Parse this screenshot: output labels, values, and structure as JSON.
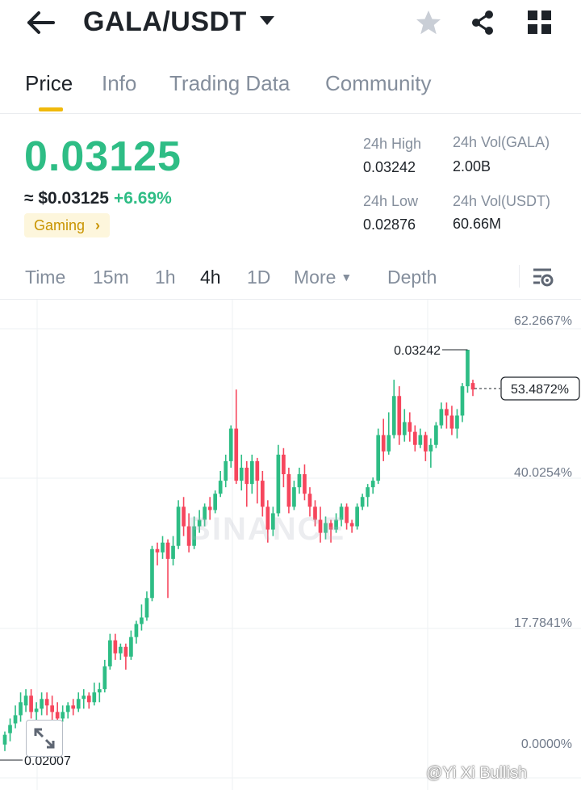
{
  "header": {
    "pair": "GALA/USDT"
  },
  "tabs": [
    {
      "label": "Price"
    },
    {
      "label": "Info"
    },
    {
      "label": "Trading Data"
    },
    {
      "label": "Community"
    }
  ],
  "ticker": {
    "last_price": "0.03125",
    "approx_usd": "≈ $0.03125",
    "change_pct": "+6.69%",
    "tag": "Gaming"
  },
  "stats": {
    "high_label": "24h High",
    "high_value": "0.03242",
    "vol_gala_label": "24h Vol(GALA)",
    "vol_gala_value": "2.00B",
    "low_label": "24h Low",
    "low_value": "0.02876",
    "vol_usdt_label": "24h Vol(USDT)",
    "vol_usdt_value": "60.66M"
  },
  "chart_tabs": [
    {
      "label": "Time"
    },
    {
      "label": "15m"
    },
    {
      "label": "1h"
    },
    {
      "label": "4h"
    },
    {
      "label": "1D"
    },
    {
      "label": "More"
    },
    {
      "label": "Depth"
    }
  ],
  "colors": {
    "up": "#2ebd85",
    "down": "#f6465d",
    "accent": "#f0b90b"
  },
  "chart_data": {
    "type": "candlestick",
    "interval": "4h",
    "y_axis_labels": [
      "62.2667%",
      "40.0254%",
      "17.7841%",
      "0.0000%"
    ],
    "current_marker": "53.4872%",
    "high_marker": "0.03242",
    "low_marker": "0.02007",
    "watermark": "BINANCE",
    "candles": [
      [
        0.0203,
        0.0206,
        0.0201,
        0.0207
      ],
      [
        0.02065,
        0.0209,
        0.0204,
        0.0211
      ],
      [
        0.02095,
        0.0212,
        0.0208,
        0.0215
      ],
      [
        0.0212,
        0.0216,
        0.021,
        0.0219
      ],
      [
        0.0215,
        0.0218,
        0.0213,
        0.022
      ],
      [
        0.0218,
        0.0213,
        0.0211,
        0.022
      ],
      [
        0.0213,
        0.0214,
        0.0209,
        0.0216
      ],
      [
        0.0214,
        0.0217,
        0.0212,
        0.0219
      ],
      [
        0.0217,
        0.0215,
        0.0212,
        0.0219
      ],
      [
        0.0215,
        0.0213,
        0.0209,
        0.0218
      ],
      [
        0.0213,
        0.0211,
        0.0208,
        0.0216
      ],
      [
        0.0211,
        0.0213,
        0.021,
        0.0215
      ],
      [
        0.0213,
        0.0215,
        0.0211,
        0.0216
      ],
      [
        0.0215,
        0.0214,
        0.0212,
        0.0217
      ],
      [
        0.0214,
        0.0217,
        0.0213,
        0.0219
      ],
      [
        0.0217,
        0.0218,
        0.0214,
        0.022
      ],
      [
        0.0218,
        0.0216,
        0.0214,
        0.0219
      ],
      [
        0.0216,
        0.0219,
        0.0215,
        0.0222
      ],
      [
        0.0219,
        0.022,
        0.0216,
        0.0222
      ],
      [
        0.022,
        0.0227,
        0.0219,
        0.0229
      ],
      [
        0.0227,
        0.0235,
        0.0226,
        0.0237
      ],
      [
        0.0235,
        0.0231,
        0.0229,
        0.0237
      ],
      [
        0.0231,
        0.0233,
        0.0229,
        0.0234
      ],
      [
        0.0233,
        0.023,
        0.0226,
        0.0234
      ],
      [
        0.023,
        0.0236,
        0.0229,
        0.0238
      ],
      [
        0.0236,
        0.024,
        0.0234,
        0.0241
      ],
      [
        0.024,
        0.0242,
        0.0238,
        0.0246
      ],
      [
        0.0242,
        0.0248,
        0.0241,
        0.025
      ],
      [
        0.0248,
        0.0263,
        0.0247,
        0.0264
      ],
      [
        0.0263,
        0.0262,
        0.0258,
        0.0265
      ],
      [
        0.0262,
        0.0265,
        0.026,
        0.0267
      ],
      [
        0.0265,
        0.026,
        0.0248,
        0.0266
      ],
      [
        0.026,
        0.0264,
        0.0258,
        0.0267
      ],
      [
        0.0264,
        0.0276,
        0.0263,
        0.0278
      ],
      [
        0.0276,
        0.027,
        0.0267,
        0.0279
      ],
      [
        0.027,
        0.0264,
        0.0262,
        0.0274
      ],
      [
        0.0264,
        0.027,
        0.0263,
        0.0273
      ],
      [
        0.027,
        0.0272,
        0.0268,
        0.0275
      ],
      [
        0.0272,
        0.0276,
        0.027,
        0.0277
      ],
      [
        0.0276,
        0.0275,
        0.0272,
        0.0279
      ],
      [
        0.0275,
        0.028,
        0.0274,
        0.0281
      ],
      [
        0.028,
        0.0284,
        0.0279,
        0.0287
      ],
      [
        0.0284,
        0.029,
        0.0282,
        0.0292
      ],
      [
        0.029,
        0.03,
        0.0288,
        0.0301
      ],
      [
        0.03,
        0.0284,
        0.0283,
        0.0312
      ],
      [
        0.0284,
        0.0288,
        0.0281,
        0.0292
      ],
      [
        0.0288,
        0.0283,
        0.0276,
        0.029
      ],
      [
        0.0283,
        0.029,
        0.028,
        0.0292
      ],
      [
        0.029,
        0.0284,
        0.0277,
        0.0291
      ],
      [
        0.0284,
        0.0276,
        0.0273,
        0.0287
      ],
      [
        0.0276,
        0.0269,
        0.0265,
        0.0278
      ],
      [
        0.0269,
        0.0274,
        0.0267,
        0.0276
      ],
      [
        0.0274,
        0.0292,
        0.0273,
        0.0295
      ],
      [
        0.0292,
        0.0286,
        0.0282,
        0.0294
      ],
      [
        0.0286,
        0.0276,
        0.0274,
        0.0288
      ],
      [
        0.0276,
        0.0282,
        0.0275,
        0.0284
      ],
      [
        0.0282,
        0.0286,
        0.028,
        0.0288
      ],
      [
        0.0286,
        0.028,
        0.0278,
        0.0289
      ],
      [
        0.028,
        0.0276,
        0.0273,
        0.0282
      ],
      [
        0.0276,
        0.0272,
        0.027,
        0.0278
      ],
      [
        0.0272,
        0.0268,
        0.0265,
        0.0276
      ],
      [
        0.0268,
        0.0271,
        0.0266,
        0.0273
      ],
      [
        0.0271,
        0.0269,
        0.0265,
        0.0272
      ],
      [
        0.0269,
        0.0272,
        0.0268,
        0.0274
      ],
      [
        0.0272,
        0.0276,
        0.027,
        0.0277
      ],
      [
        0.0276,
        0.0271,
        0.0269,
        0.0277
      ],
      [
        0.0271,
        0.027,
        0.0268,
        0.0272
      ],
      [
        0.027,
        0.0276,
        0.0269,
        0.0277
      ],
      [
        0.0276,
        0.0279,
        0.0275,
        0.028
      ],
      [
        0.0279,
        0.0282,
        0.0276,
        0.0283
      ],
      [
        0.0282,
        0.0284,
        0.028,
        0.0285
      ],
      [
        0.0284,
        0.0298,
        0.0283,
        0.03
      ],
      [
        0.0298,
        0.0293,
        0.029,
        0.0303
      ],
      [
        0.0293,
        0.0298,
        0.0292,
        0.0305
      ],
      [
        0.0298,
        0.031,
        0.0297,
        0.0315
      ],
      [
        0.031,
        0.0298,
        0.0295,
        0.0313
      ],
      [
        0.0298,
        0.0302,
        0.0296,
        0.0306
      ],
      [
        0.0302,
        0.0299,
        0.0296,
        0.0305
      ],
      [
        0.0299,
        0.0295,
        0.0293,
        0.0301
      ],
      [
        0.0295,
        0.0298,
        0.0294,
        0.03
      ],
      [
        0.0298,
        0.0293,
        0.029,
        0.0299
      ],
      [
        0.0293,
        0.0295,
        0.0288,
        0.0297
      ],
      [
        0.0295,
        0.0301,
        0.0294,
        0.0302
      ],
      [
        0.0301,
        0.0306,
        0.03,
        0.0308
      ],
      [
        0.0306,
        0.0304,
        0.03,
        0.0308
      ],
      [
        0.0304,
        0.03,
        0.0298,
        0.0307
      ],
      [
        0.03,
        0.0304,
        0.0297,
        0.0306
      ],
      [
        0.0304,
        0.0313,
        0.0302,
        0.0314
      ],
      [
        0.0313,
        0.03242,
        0.0311,
        0.03242
      ],
      [
        0.0314,
        0.0312,
        0.031,
        0.0315
      ]
    ]
  }
}
